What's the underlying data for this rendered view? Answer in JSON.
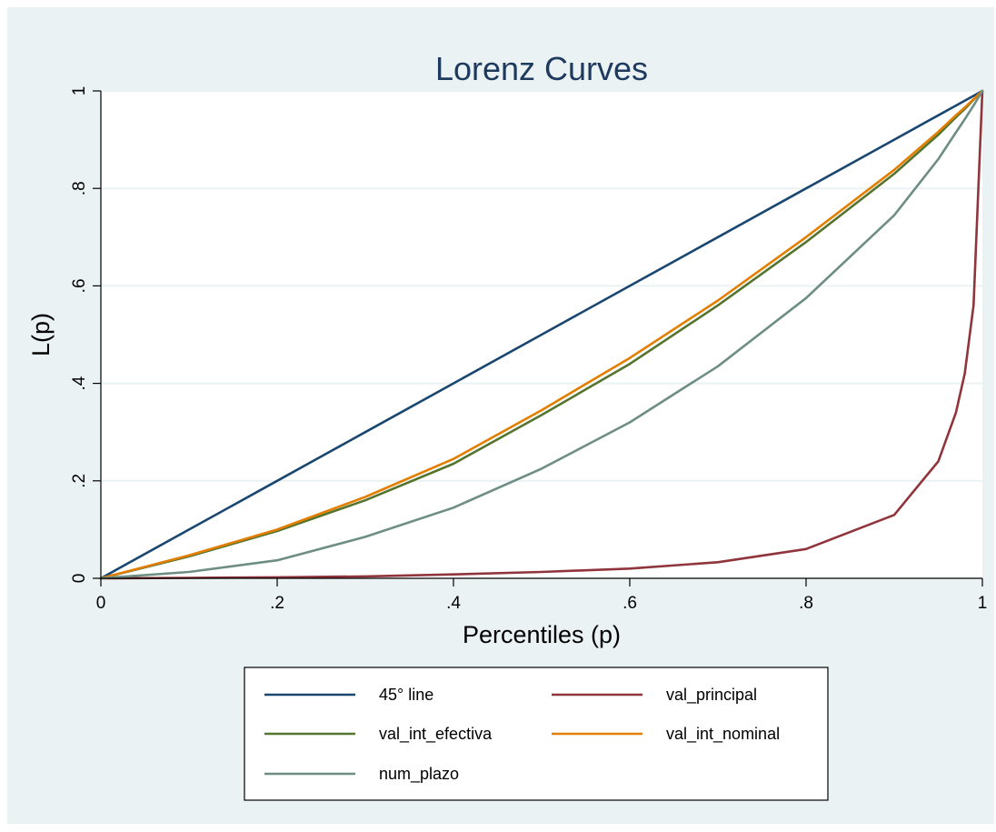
{
  "chart_data": {
    "type": "line",
    "title": "Lorenz Curves",
    "xlabel": "Percentiles (p)",
    "ylabel": "L(p)",
    "xlim": [
      0,
      1
    ],
    "ylim": [
      0,
      1
    ],
    "x_ticks": [
      0,
      0.2,
      0.4,
      0.6,
      0.8,
      1
    ],
    "x_tick_labels": [
      "0",
      ".2",
      ".4",
      ".6",
      ".8",
      "1"
    ],
    "y_ticks": [
      0,
      0.2,
      0.4,
      0.6,
      0.8,
      1
    ],
    "y_tick_labels": [
      "0",
      ".2",
      ".4",
      ".6",
      ".8",
      "1"
    ],
    "grid": "horizontal",
    "legend_position": "bottom",
    "colors": {
      "outer_background": "#eaf2f3",
      "plot_background": "#ffffff",
      "gridline": "#eaf2f3",
      "title": "#1e3a5f"
    },
    "x": [
      0,
      0.1,
      0.2,
      0.3,
      0.4,
      0.5,
      0.6,
      0.7,
      0.8,
      0.9,
      0.95,
      0.97,
      0.98,
      0.99,
      1
    ],
    "series": [
      {
        "name": "45° line",
        "color": "#1a476f",
        "values": [
          0,
          0.1,
          0.2,
          0.3,
          0.4,
          0.5,
          0.6,
          0.7,
          0.8,
          0.9,
          0.95,
          0.97,
          0.98,
          0.99,
          1
        ]
      },
      {
        "name": "val_principal",
        "color": "#90353b",
        "values": [
          0,
          0.001,
          0.002,
          0.004,
          0.008,
          0.013,
          0.02,
          0.033,
          0.06,
          0.13,
          0.24,
          0.34,
          0.42,
          0.56,
          1
        ]
      },
      {
        "name": "val_int_efectiva",
        "color": "#55752f",
        "values": [
          0,
          0.045,
          0.097,
          0.16,
          0.235,
          0.335,
          0.44,
          0.56,
          0.69,
          0.83,
          0.91,
          0.946,
          0.963,
          0.982,
          1
        ]
      },
      {
        "name": "val_int_nominal",
        "color": "#e37e00",
        "values": [
          0,
          0.047,
          0.1,
          0.167,
          0.245,
          0.345,
          0.452,
          0.57,
          0.7,
          0.838,
          0.916,
          0.95,
          0.966,
          0.983,
          1
        ]
      },
      {
        "name": "num_plazo",
        "color": "#6e8e84",
        "values": [
          0,
          0.013,
          0.037,
          0.085,
          0.145,
          0.225,
          0.32,
          0.435,
          0.575,
          0.745,
          0.86,
          0.915,
          0.942,
          0.97,
          1
        ]
      }
    ],
    "legend_order": [
      0,
      1,
      2,
      3,
      4
    ]
  }
}
